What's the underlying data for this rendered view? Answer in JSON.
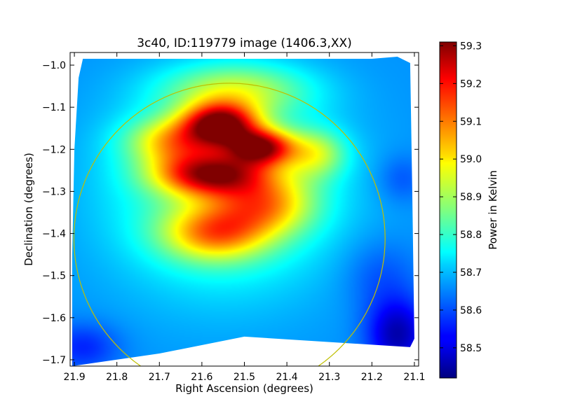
{
  "chart_data": {
    "type": "heatmap",
    "title": "3c40, ID:119779 image (1406.3,XX)",
    "xlabel": "Right Ascension (degrees)",
    "ylabel": "Declination (degrees)",
    "xlim": [
      21.91,
      21.09
    ],
    "ylim": [
      -1.715,
      -0.97
    ],
    "x_ticks": [
      21.9,
      21.8,
      21.7,
      21.6,
      21.5,
      21.4,
      21.3,
      21.2,
      21.1
    ],
    "x_tick_labels": [
      "21.9",
      "21.8",
      "21.7",
      "21.6",
      "21.5",
      "21.4",
      "21.3",
      "21.2",
      "21.1"
    ],
    "y_ticks": [
      -1.0,
      -1.1,
      -1.2,
      -1.3,
      -1.4,
      -1.5,
      -1.6,
      -1.7
    ],
    "y_tick_labels": [
      "−1.0",
      "−1.1",
      "−1.2",
      "−1.3",
      "−1.4",
      "−1.5",
      "−1.6",
      "−1.7"
    ],
    "colorbar": {
      "label": "Power in Kelvin",
      "range": [
        58.42,
        59.31
      ],
      "ticks": [
        58.5,
        58.6,
        58.7,
        58.8,
        58.9,
        59.0,
        59.1,
        59.2,
        59.3
      ],
      "tick_labels": [
        "58.5",
        "58.6",
        "58.7",
        "58.8",
        "58.9",
        "59.0",
        "59.1",
        "59.2",
        "59.3"
      ],
      "colormap": "jet"
    },
    "baseline_value": 58.66,
    "hotspots": [
      {
        "ra": 21.555,
        "dec": -1.14,
        "amp": 0.52,
        "sx": 0.06,
        "sy": 0.035
      },
      {
        "ra": 21.46,
        "dec": -1.195,
        "amp": 0.48,
        "sx": 0.055,
        "sy": 0.03
      },
      {
        "ra": 21.58,
        "dec": -1.26,
        "amp": 0.44,
        "sx": 0.09,
        "sy": 0.035
      },
      {
        "ra": 21.66,
        "dec": -1.18,
        "amp": 0.28,
        "sx": 0.08,
        "sy": 0.04
      },
      {
        "ra": 21.52,
        "dec": -1.06,
        "amp": 0.22,
        "sx": 0.12,
        "sy": 0.045
      },
      {
        "ra": 21.57,
        "dec": -1.4,
        "amp": 0.3,
        "sx": 0.085,
        "sy": 0.045
      },
      {
        "ra": 21.45,
        "dec": -1.33,
        "amp": 0.26,
        "sx": 0.08,
        "sy": 0.05
      },
      {
        "ra": 21.33,
        "dec": -1.21,
        "amp": 0.2,
        "sx": 0.05,
        "sy": 0.04
      },
      {
        "ra": 21.55,
        "dec": -1.3,
        "amp": 0.2,
        "sx": 0.18,
        "sy": 0.16
      },
      {
        "ra": 21.14,
        "dec": -1.64,
        "amp": -0.2,
        "sx": 0.05,
        "sy": 0.06
      },
      {
        "ra": 21.18,
        "dec": -1.5,
        "amp": -0.06,
        "sx": 0.06,
        "sy": 0.06
      },
      {
        "ra": 21.13,
        "dec": -1.27,
        "amp": -0.06,
        "sx": 0.04,
        "sy": 0.04
      },
      {
        "ra": 21.88,
        "dec": -1.67,
        "amp": -0.1,
        "sx": 0.06,
        "sy": 0.04
      }
    ],
    "coverage_footprint": [
      {
        "ra": 21.88,
        "dec": -0.985
      },
      {
        "ra": 21.2,
        "dec": -0.985
      },
      {
        "ra": 21.14,
        "dec": -0.98
      },
      {
        "ra": 21.11,
        "dec": -0.995
      },
      {
        "ra": 21.105,
        "dec": -1.3
      },
      {
        "ra": 21.1,
        "dec": -1.65
      },
      {
        "ra": 21.11,
        "dec": -1.67
      },
      {
        "ra": 21.5,
        "dec": -1.645
      },
      {
        "ra": 21.7,
        "dec": -1.685
      },
      {
        "ra": 21.905,
        "dec": -1.715
      },
      {
        "ra": 21.905,
        "dec": -1.45
      },
      {
        "ra": 21.9,
        "dec": -1.2
      },
      {
        "ra": 21.89,
        "dec": -1.03
      }
    ],
    "overlay_circle": {
      "center_ra": 21.535,
      "center_dec": -1.412,
      "radius_deg": 0.369,
      "color": "#bfbf00"
    }
  }
}
